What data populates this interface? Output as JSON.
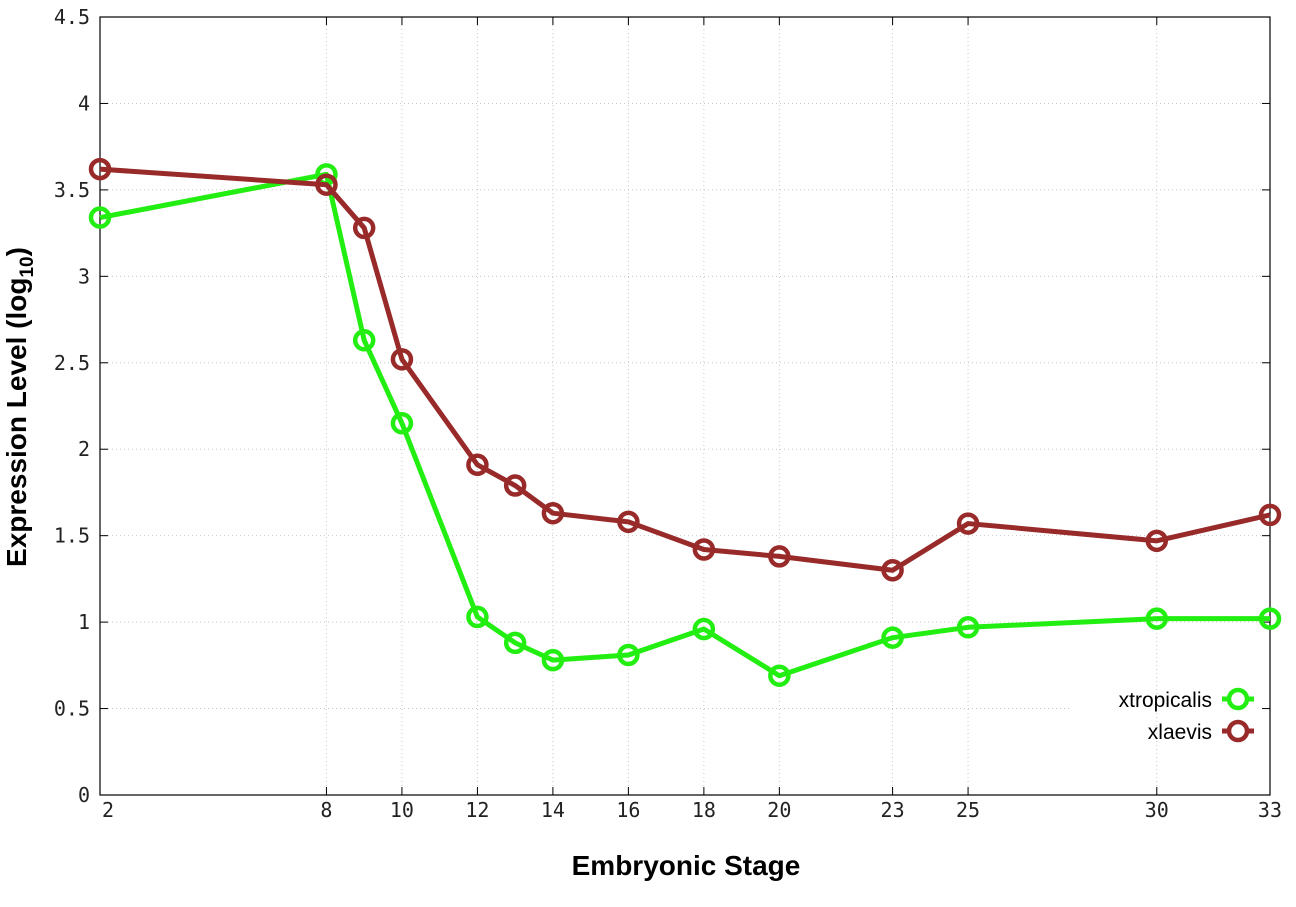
{
  "chart_data": {
    "type": "line",
    "xlabel": "Embryonic Stage",
    "ylabel_main": "Expression Level (log",
    "ylabel_sub": "10",
    "ylabel_close": ")",
    "xlim": [
      2,
      33
    ],
    "ylim": [
      0,
      4.5
    ],
    "x_ticks": [
      2,
      8,
      10,
      12,
      14,
      16,
      18,
      20,
      23,
      25,
      30,
      33
    ],
    "y_ticks": [
      {
        "value": 0,
        "label": "0"
      },
      {
        "value": 0.5,
        "label": "0.5"
      },
      {
        "value": 1,
        "label": "1"
      },
      {
        "value": 1.5,
        "label": "1.5"
      },
      {
        "value": 2,
        "label": "2"
      },
      {
        "value": 2.5,
        "label": "2.5"
      },
      {
        "value": 3,
        "label": "3"
      },
      {
        "value": 3.5,
        "label": "3.5"
      },
      {
        "value": 4,
        "label": "4"
      },
      {
        "value": 4.5,
        "label": "4.5"
      }
    ],
    "grid": true,
    "legend_position": "bottom-right",
    "x": [
      2,
      8,
      9,
      10,
      12,
      13,
      14,
      16,
      18,
      20,
      23,
      25,
      30,
      33
    ],
    "series": [
      {
        "name": "xtropicalis",
        "color": "#22ee11",
        "values": [
          3.34,
          3.59,
          2.63,
          2.15,
          1.03,
          0.88,
          0.78,
          0.81,
          0.96,
          0.69,
          0.91,
          0.97,
          1.02,
          1.02
        ]
      },
      {
        "name": "xlaevis",
        "color": "#992a2a",
        "values": [
          3.62,
          3.53,
          3.28,
          2.52,
          1.91,
          1.79,
          1.63,
          1.58,
          1.42,
          1.38,
          1.3,
          1.57,
          1.47,
          1.62
        ]
      }
    ]
  }
}
